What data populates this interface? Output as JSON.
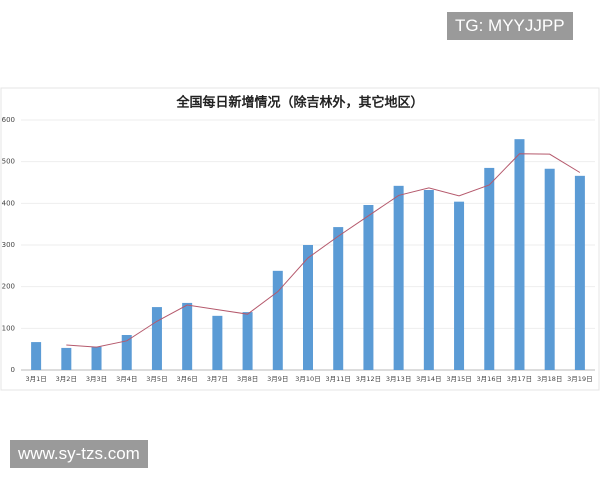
{
  "chart_data": {
    "type": "bar",
    "title": "全国每日新增情况（除吉林外，其它地区）",
    "categories": [
      "3月1日",
      "3月2日",
      "3月3日",
      "3月4日",
      "3月5日",
      "3月6日",
      "3月7日",
      "3月8日",
      "3月9日",
      "3月10日",
      "3月11日",
      "3月12日",
      "3月13日",
      "3月14日",
      "3月15日",
      "3月16日",
      "3月17日",
      "3月18日",
      "3月19日"
    ],
    "series": [
      {
        "type": "bar",
        "color": "#5b9bd5",
        "values": [
          67,
          53,
          56,
          84,
          151,
          161,
          130,
          139,
          238,
          300,
          343,
          396,
          442,
          432,
          404,
          485,
          554,
          483,
          466
        ]
      },
      {
        "type": "line",
        "color": "#b5596c",
        "values": [
          null,
          60,
          55,
          70,
          117,
          156,
          145,
          134,
          188,
          269,
          321,
          370,
          419,
          437,
          418,
          444,
          519,
          518,
          474
        ]
      }
    ],
    "ylim": [
      0,
      600
    ],
    "yticks": [
      0,
      100,
      200,
      300,
      400,
      500,
      600
    ],
    "grid": true
  },
  "overlay": {
    "top_right": "TG: MYYJJPP",
    "bottom_left": "www.sy-tzs.com"
  }
}
